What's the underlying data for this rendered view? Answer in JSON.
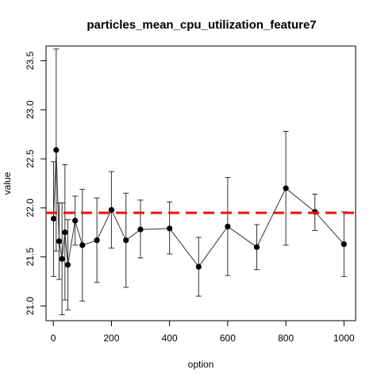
{
  "chart_data": {
    "type": "line",
    "title": "particles_mean_cpu_utilization_feature7",
    "xlabel": "option",
    "ylabel": "value",
    "xlim": [
      -25,
      1040
    ],
    "ylim": [
      20.85,
      23.65
    ],
    "x_ticks": [
      0,
      200,
      400,
      600,
      800,
      1000
    ],
    "y_ticks": [
      21.0,
      21.5,
      22.0,
      22.5,
      23.0,
      23.5
    ],
    "x_tick_labels": [
      "0",
      "200",
      "400",
      "600",
      "800",
      "1000"
    ],
    "y_tick_labels": [
      "21.0",
      "21.5",
      "22.0",
      "22.5",
      "23.0",
      "23.5"
    ],
    "grid": false,
    "reference_line": {
      "y": 21.95,
      "color": "#ee1111",
      "style": "dashed"
    },
    "series": [
      {
        "line_color": "#333333",
        "marker_color": "#000000",
        "points": [
          {
            "x": 1,
            "y": 21.89,
            "lo": 21.3,
            "hi": 22.47
          },
          {
            "x": 10,
            "y": 22.59,
            "lo": 21.56,
            "hi": 23.62
          },
          {
            "x": 20,
            "y": 21.66,
            "lo": 21.27,
            "hi": 22.05
          },
          {
            "x": 30,
            "y": 21.48,
            "lo": 20.91,
            "hi": 22.05
          },
          {
            "x": 40,
            "y": 21.75,
            "lo": 21.06,
            "hi": 22.44
          },
          {
            "x": 50,
            "y": 21.42,
            "lo": 20.96,
            "hi": 21.88
          },
          {
            "x": 75,
            "y": 21.87,
            "lo": 21.62,
            "hi": 22.12
          },
          {
            "x": 100,
            "y": 21.62,
            "lo": 21.05,
            "hi": 22.19
          },
          {
            "x": 150,
            "y": 21.67,
            "lo": 21.24,
            "hi": 22.1
          },
          {
            "x": 200,
            "y": 21.98,
            "lo": 21.59,
            "hi": 22.37
          },
          {
            "x": 250,
            "y": 21.67,
            "lo": 21.19,
            "hi": 22.15
          },
          {
            "x": 300,
            "y": 21.78,
            "lo": 21.49,
            "hi": 22.08
          },
          {
            "x": 400,
            "y": 21.79,
            "lo": 21.53,
            "hi": 22.06
          },
          {
            "x": 500,
            "y": 21.4,
            "lo": 21.1,
            "hi": 21.7
          },
          {
            "x": 600,
            "y": 21.81,
            "lo": 21.31,
            "hi": 22.31
          },
          {
            "x": 700,
            "y": 21.6,
            "lo": 21.37,
            "hi": 21.83
          },
          {
            "x": 800,
            "y": 22.2,
            "lo": 21.62,
            "hi": 22.78
          },
          {
            "x": 900,
            "y": 21.96,
            "lo": 21.77,
            "hi": 22.14
          },
          {
            "x": 1000,
            "y": 21.63,
            "lo": 21.3,
            "hi": 21.96
          }
        ]
      }
    ]
  }
}
